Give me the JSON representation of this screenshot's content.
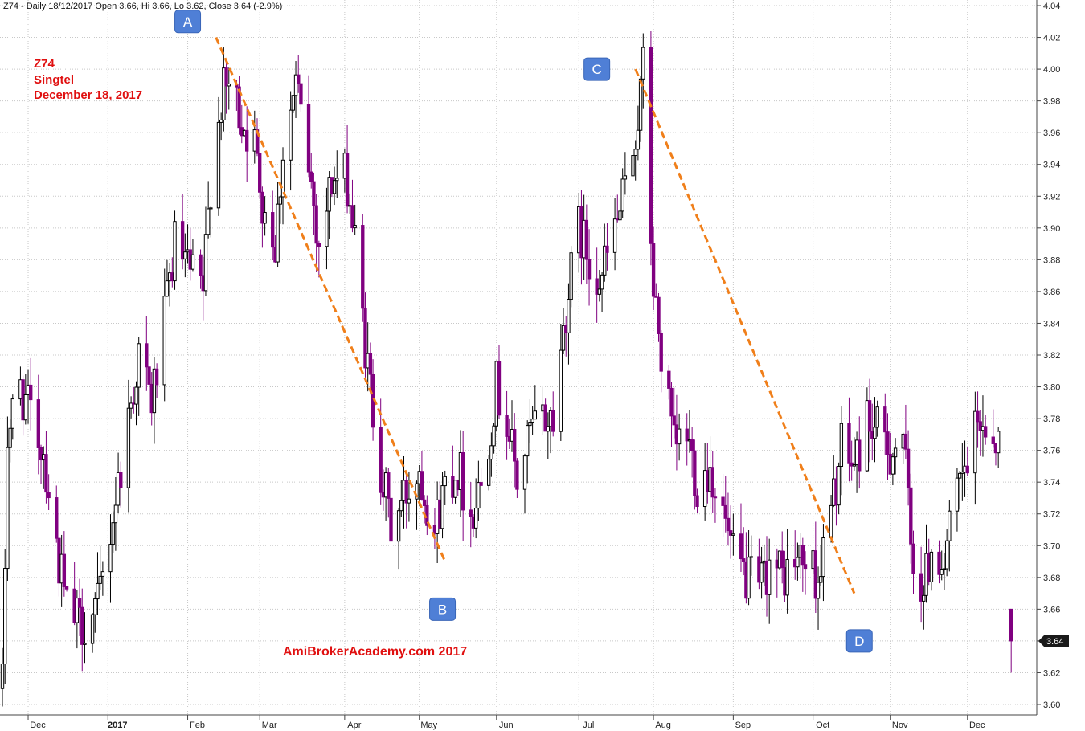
{
  "header": "Z74 - Daily 18/12/2017 Open 3.66, Hi 3.66, Lo 3.62, Close 3.64 (-2.9%)",
  "annotation": {
    "symbol": "Z74",
    "name": "Singtel",
    "date": "December 18, 2017"
  },
  "watermark": "AmiBrokerAcademy.com  2017",
  "last_price_tag": "3.64",
  "colors": {
    "up": "#000000",
    "down": "#800080",
    "trendline": "#f07f1a",
    "marker_bg": "#4f7fd6",
    "grid": "#c8c8c8"
  },
  "chart_data": {
    "type": "candlestick",
    "title": "Z74 - Daily 18/12/2017 Open 3.66, Hi 3.66, Lo 3.62, Close 3.64 (-2.9%)",
    "ylim": [
      3.59,
      4.04
    ],
    "y_ticks": [
      "4.04",
      "4.02",
      "4.00",
      "3.98",
      "3.96",
      "3.94",
      "3.92",
      "3.90",
      "3.88",
      "3.86",
      "3.84",
      "3.82",
      "3.80",
      "3.78",
      "3.76",
      "3.74",
      "3.72",
      "3.70",
      "3.68",
      "3.66",
      "3.64",
      "3.62",
      "3.60"
    ],
    "x_range": [
      "2016-11-21",
      "2017-12-27"
    ],
    "x_ticks": [
      {
        "date": "2016-12-01",
        "label": "Dec"
      },
      {
        "date": "2017-01-01",
        "label": "2017"
      },
      {
        "date": "2017-02-01",
        "label": "Feb"
      },
      {
        "date": "2017-03-01",
        "label": "Mar"
      },
      {
        "date": "2017-04-03",
        "label": "Apr"
      },
      {
        "date": "2017-05-02",
        "label": "May"
      },
      {
        "date": "2017-06-01",
        "label": "Jun"
      },
      {
        "date": "2017-07-03",
        "label": "Jul"
      },
      {
        "date": "2017-08-01",
        "label": "Aug"
      },
      {
        "date": "2017-09-01",
        "label": "Sep"
      },
      {
        "date": "2017-10-02",
        "label": "Oct"
      },
      {
        "date": "2017-11-01",
        "label": "Nov"
      },
      {
        "date": "2017-12-01",
        "label": "Dec"
      }
    ],
    "grid": true,
    "price_path": [
      [
        "2016-11-21",
        3.61
      ],
      [
        "2016-11-23",
        3.77
      ],
      [
        "2016-11-28",
        3.8
      ],
      [
        "2016-12-02",
        3.78
      ],
      [
        "2016-12-07",
        3.76
      ],
      [
        "2016-12-12",
        3.7
      ],
      [
        "2016-12-16",
        3.66
      ],
      [
        "2016-12-21",
        3.65
      ],
      [
        "2016-12-28",
        3.66
      ],
      [
        "2017-01-04",
        3.73
      ],
      [
        "2017-01-09",
        3.78
      ],
      [
        "2017-01-13",
        3.82
      ],
      [
        "2017-01-18",
        3.79
      ],
      [
        "2017-01-23",
        3.84
      ],
      [
        "2017-01-27",
        3.89
      ],
      [
        "2017-02-02",
        3.87
      ],
      [
        "2017-02-07",
        3.86
      ],
      [
        "2017-02-10",
        3.93
      ],
      [
        "2017-02-14",
        3.98
      ],
      [
        "2017-02-17",
        3.99
      ],
      [
        "2017-02-22",
        3.97
      ],
      [
        "2017-02-27",
        3.95
      ],
      [
        "2017-03-02",
        3.92
      ],
      [
        "2017-03-07",
        3.89
      ],
      [
        "2017-03-10",
        3.95
      ],
      [
        "2017-03-15",
        3.99
      ],
      [
        "2017-03-20",
        3.94
      ],
      [
        "2017-03-24",
        3.89
      ],
      [
        "2017-03-29",
        3.93
      ],
      [
        "2017-04-04",
        3.93
      ],
      [
        "2017-04-07",
        3.89
      ],
      [
        "2017-04-12",
        3.81
      ],
      [
        "2017-04-17",
        3.75
      ],
      [
        "2017-04-21",
        3.71
      ],
      [
        "2017-04-26",
        3.73
      ],
      [
        "2017-05-02",
        3.75
      ],
      [
        "2017-05-08",
        3.71
      ],
      [
        "2017-05-12",
        3.74
      ],
      [
        "2017-05-17",
        3.75
      ],
      [
        "2017-05-22",
        3.72
      ],
      [
        "2017-05-26",
        3.74
      ],
      [
        "2017-06-01",
        3.8
      ],
      [
        "2017-06-05",
        3.78
      ],
      [
        "2017-06-09",
        3.74
      ],
      [
        "2017-06-14",
        3.77
      ],
      [
        "2017-06-19",
        3.78
      ],
      [
        "2017-06-23",
        3.78
      ],
      [
        "2017-06-28",
        3.85
      ],
      [
        "2017-07-03",
        3.9
      ],
      [
        "2017-07-07",
        3.88
      ],
      [
        "2017-07-12",
        3.87
      ],
      [
        "2017-07-17",
        3.9
      ],
      [
        "2017-07-21",
        3.92
      ],
      [
        "2017-07-26",
        3.97
      ],
      [
        "2017-07-28",
        4.0
      ],
      [
        "2017-08-01",
        3.86
      ],
      [
        "2017-08-04",
        3.82
      ],
      [
        "2017-08-09",
        3.76
      ],
      [
        "2017-08-14",
        3.77
      ],
      [
        "2017-08-18",
        3.74
      ],
      [
        "2017-08-23",
        3.75
      ],
      [
        "2017-08-28",
        3.72
      ],
      [
        "2017-09-01",
        3.69
      ],
      [
        "2017-09-06",
        3.68
      ],
      [
        "2017-09-11",
        3.67
      ],
      [
        "2017-09-15",
        3.69
      ],
      [
        "2017-09-20",
        3.68
      ],
      [
        "2017-09-25",
        3.69
      ],
      [
        "2017-09-29",
        3.69
      ],
      [
        "2017-10-04",
        3.68
      ],
      [
        "2017-10-09",
        3.72
      ],
      [
        "2017-10-13",
        3.76
      ],
      [
        "2017-10-18",
        3.75
      ],
      [
        "2017-10-23",
        3.78
      ],
      [
        "2017-10-27",
        3.77
      ],
      [
        "2017-11-01",
        3.76
      ],
      [
        "2017-11-06",
        3.77
      ],
      [
        "2017-11-09",
        3.7
      ],
      [
        "2017-11-14",
        3.67
      ],
      [
        "2017-11-17",
        3.7
      ],
      [
        "2017-11-22",
        3.69
      ],
      [
        "2017-11-27",
        3.73
      ],
      [
        "2017-12-01",
        3.75
      ],
      [
        "2017-12-06",
        3.78
      ],
      [
        "2017-12-11",
        3.77
      ],
      [
        "2017-12-15",
        3.76
      ],
      [
        "2017-12-18",
        3.64
      ]
    ],
    "trendlines": [
      {
        "from": [
          "2017-02-12",
          4.02
        ],
        "to": [
          "2017-05-12",
          3.69
        ]
      },
      {
        "from": [
          "2017-07-25",
          4.0
        ],
        "to": [
          "2017-10-18",
          3.67
        ]
      }
    ],
    "markers": [
      {
        "label": "A",
        "date": "2017-02-01",
        "price": 4.03
      },
      {
        "label": "B",
        "date": "2017-05-11",
        "price": 3.66
      },
      {
        "label": "C",
        "date": "2017-07-10",
        "price": 4.0
      },
      {
        "label": "D",
        "date": "2017-10-20",
        "price": 3.64
      }
    ]
  }
}
